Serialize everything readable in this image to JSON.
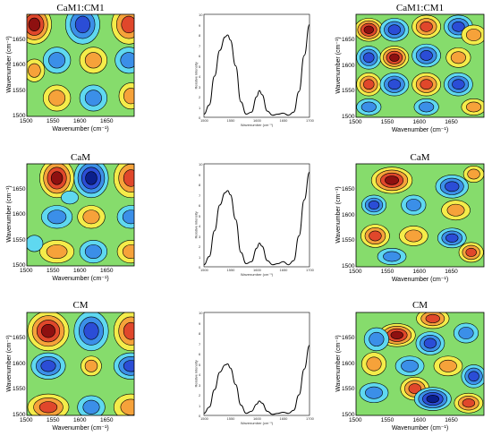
{
  "chart_data": [
    {
      "type": "heatmap",
      "row": 0,
      "col": 0,
      "title": "CaM1:CM1",
      "xlabel": "Wavenumber (cm⁻¹)",
      "ylabel": "Wavenumber (cm⁻¹)",
      "xlim": [
        1500,
        1700
      ],
      "ylim": [
        1500,
        1700
      ],
      "xticks": [
        "1500",
        "1550",
        "1600",
        "1650"
      ],
      "yticks": [
        "1500",
        "1550",
        "1600",
        "1650"
      ]
    },
    {
      "type": "line",
      "row": 0,
      "col": 1,
      "title": "",
      "xlabel": "Wavenumber (cm⁻¹)",
      "ylabel": "Relative intensity",
      "xlim": [
        1500,
        1700
      ],
      "ylim": [
        0,
        10
      ],
      "xticks": [
        "1500",
        "1550",
        "1600",
        "1650",
        "1700"
      ],
      "yticks": [
        "0",
        "1",
        "2",
        "3",
        "4",
        "5",
        "6",
        "7",
        "8",
        "9",
        "10"
      ],
      "x": [
        1500,
        1510,
        1520,
        1530,
        1540,
        1545,
        1550,
        1560,
        1570,
        1580,
        1590,
        1600,
        1605,
        1610,
        1620,
        1630,
        1640,
        1650,
        1660,
        1670,
        1680,
        1690,
        1700
      ],
      "y": [
        0.3,
        1.2,
        4.0,
        6.5,
        7.8,
        8.0,
        7.5,
        5.0,
        1.5,
        0.3,
        0.5,
        2.0,
        2.6,
        2.2,
        0.6,
        0.2,
        0.3,
        0.4,
        0.2,
        0.5,
        2.5,
        6.0,
        9.0
      ]
    },
    {
      "type": "heatmap",
      "row": 0,
      "col": 2,
      "title": "CaM1:CM1",
      "xlabel": "Wavenumber (cm⁻¹)",
      "ylabel": "Wavenumber (cm⁻¹)",
      "xlim": [
        1500,
        1700
      ],
      "ylim": [
        1500,
        1700
      ],
      "xticks": [
        "1500",
        "1550",
        "1600",
        "1650"
      ],
      "yticks": [
        "1500",
        "1550",
        "1600",
        "1650"
      ]
    },
    {
      "type": "heatmap",
      "row": 1,
      "col": 0,
      "title": "CaM",
      "xlabel": "Wavenumber (cm⁻¹)",
      "ylabel": "Wavenumber (cm⁻¹)",
      "xlim": [
        1500,
        1700
      ],
      "ylim": [
        1500,
        1700
      ],
      "xticks": [
        "1500",
        "1550",
        "1600",
        "1650"
      ],
      "yticks": [
        "1500",
        "1550",
        "1600",
        "1650"
      ]
    },
    {
      "type": "line",
      "row": 1,
      "col": 1,
      "title": "",
      "xlabel": "Wavenumber (cm⁻¹)",
      "ylabel": "Relative intensity",
      "xlim": [
        1500,
        1700
      ],
      "ylim": [
        0,
        10
      ],
      "xticks": [
        "1500",
        "1550",
        "1600",
        "1650",
        "1700"
      ],
      "yticks": [
        "0",
        "1",
        "2",
        "3",
        "4",
        "5",
        "6",
        "7",
        "8",
        "9",
        "10"
      ],
      "x": [
        1500,
        1510,
        1520,
        1530,
        1540,
        1545,
        1550,
        1560,
        1570,
        1580,
        1590,
        1600,
        1605,
        1610,
        1620,
        1630,
        1640,
        1650,
        1660,
        1670,
        1680,
        1690,
        1700
      ],
      "y": [
        0.2,
        1.0,
        3.5,
        6.0,
        7.2,
        7.4,
        7.0,
        4.6,
        1.4,
        0.3,
        0.5,
        1.8,
        2.3,
        2.0,
        0.6,
        0.2,
        0.3,
        0.5,
        0.2,
        0.6,
        3.0,
        6.5,
        9.2
      ]
    },
    {
      "type": "heatmap",
      "row": 1,
      "col": 2,
      "title": "CaM",
      "xlabel": "Wavenumber (cm⁻¹)",
      "ylabel": "Wavenumber (cm⁻¹)",
      "xlim": [
        1500,
        1700
      ],
      "ylim": [
        1500,
        1700
      ],
      "xticks": [
        "1500",
        "1550",
        "1600",
        "1650"
      ],
      "yticks": [
        "1500",
        "1550",
        "1600",
        "1650"
      ]
    },
    {
      "type": "heatmap",
      "row": 2,
      "col": 0,
      "title": "CM",
      "xlabel": "Wavenumber (cm⁻¹)",
      "ylabel": "Wavenumber (cm⁻¹)",
      "xlim": [
        1500,
        1700
      ],
      "ylim": [
        1500,
        1700
      ],
      "xticks": [
        "1500",
        "1550",
        "1600",
        "1650"
      ],
      "yticks": [
        "1500",
        "1550",
        "1600",
        "1650"
      ]
    },
    {
      "type": "line",
      "row": 2,
      "col": 1,
      "title": "",
      "xlabel": "Wavenumber (cm⁻¹)",
      "ylabel": "Relative intensity",
      "xlim": [
        1500,
        1700
      ],
      "ylim": [
        0,
        10
      ],
      "xticks": [
        "1500",
        "1550",
        "1600",
        "1650",
        "1700"
      ],
      "yticks": [
        "0",
        "1",
        "2",
        "3",
        "4",
        "5",
        "6",
        "7",
        "8",
        "9",
        "10"
      ],
      "x": [
        1500,
        1510,
        1520,
        1530,
        1540,
        1545,
        1550,
        1560,
        1570,
        1580,
        1590,
        1600,
        1605,
        1610,
        1620,
        1630,
        1640,
        1650,
        1660,
        1670,
        1680,
        1690,
        1700
      ],
      "y": [
        0.2,
        0.8,
        2.5,
        4.2,
        4.9,
        5.0,
        4.6,
        3.0,
        1.0,
        0.2,
        0.4,
        1.1,
        1.4,
        1.2,
        0.4,
        0.1,
        0.2,
        0.3,
        0.2,
        0.5,
        2.0,
        4.5,
        6.8
      ]
    },
    {
      "type": "heatmap",
      "row": 2,
      "col": 2,
      "title": "CM",
      "xlabel": "Wavenumber (cm⁻¹)",
      "ylabel": "Wavenumber (cm⁻¹)",
      "xlim": [
        1500,
        1700
      ],
      "ylim": [
        1500,
        1700
      ],
      "xticks": [
        "1500",
        "1550",
        "1600",
        "1650"
      ],
      "yticks": [
        "1500",
        "1550",
        "1600",
        "1650"
      ]
    }
  ]
}
